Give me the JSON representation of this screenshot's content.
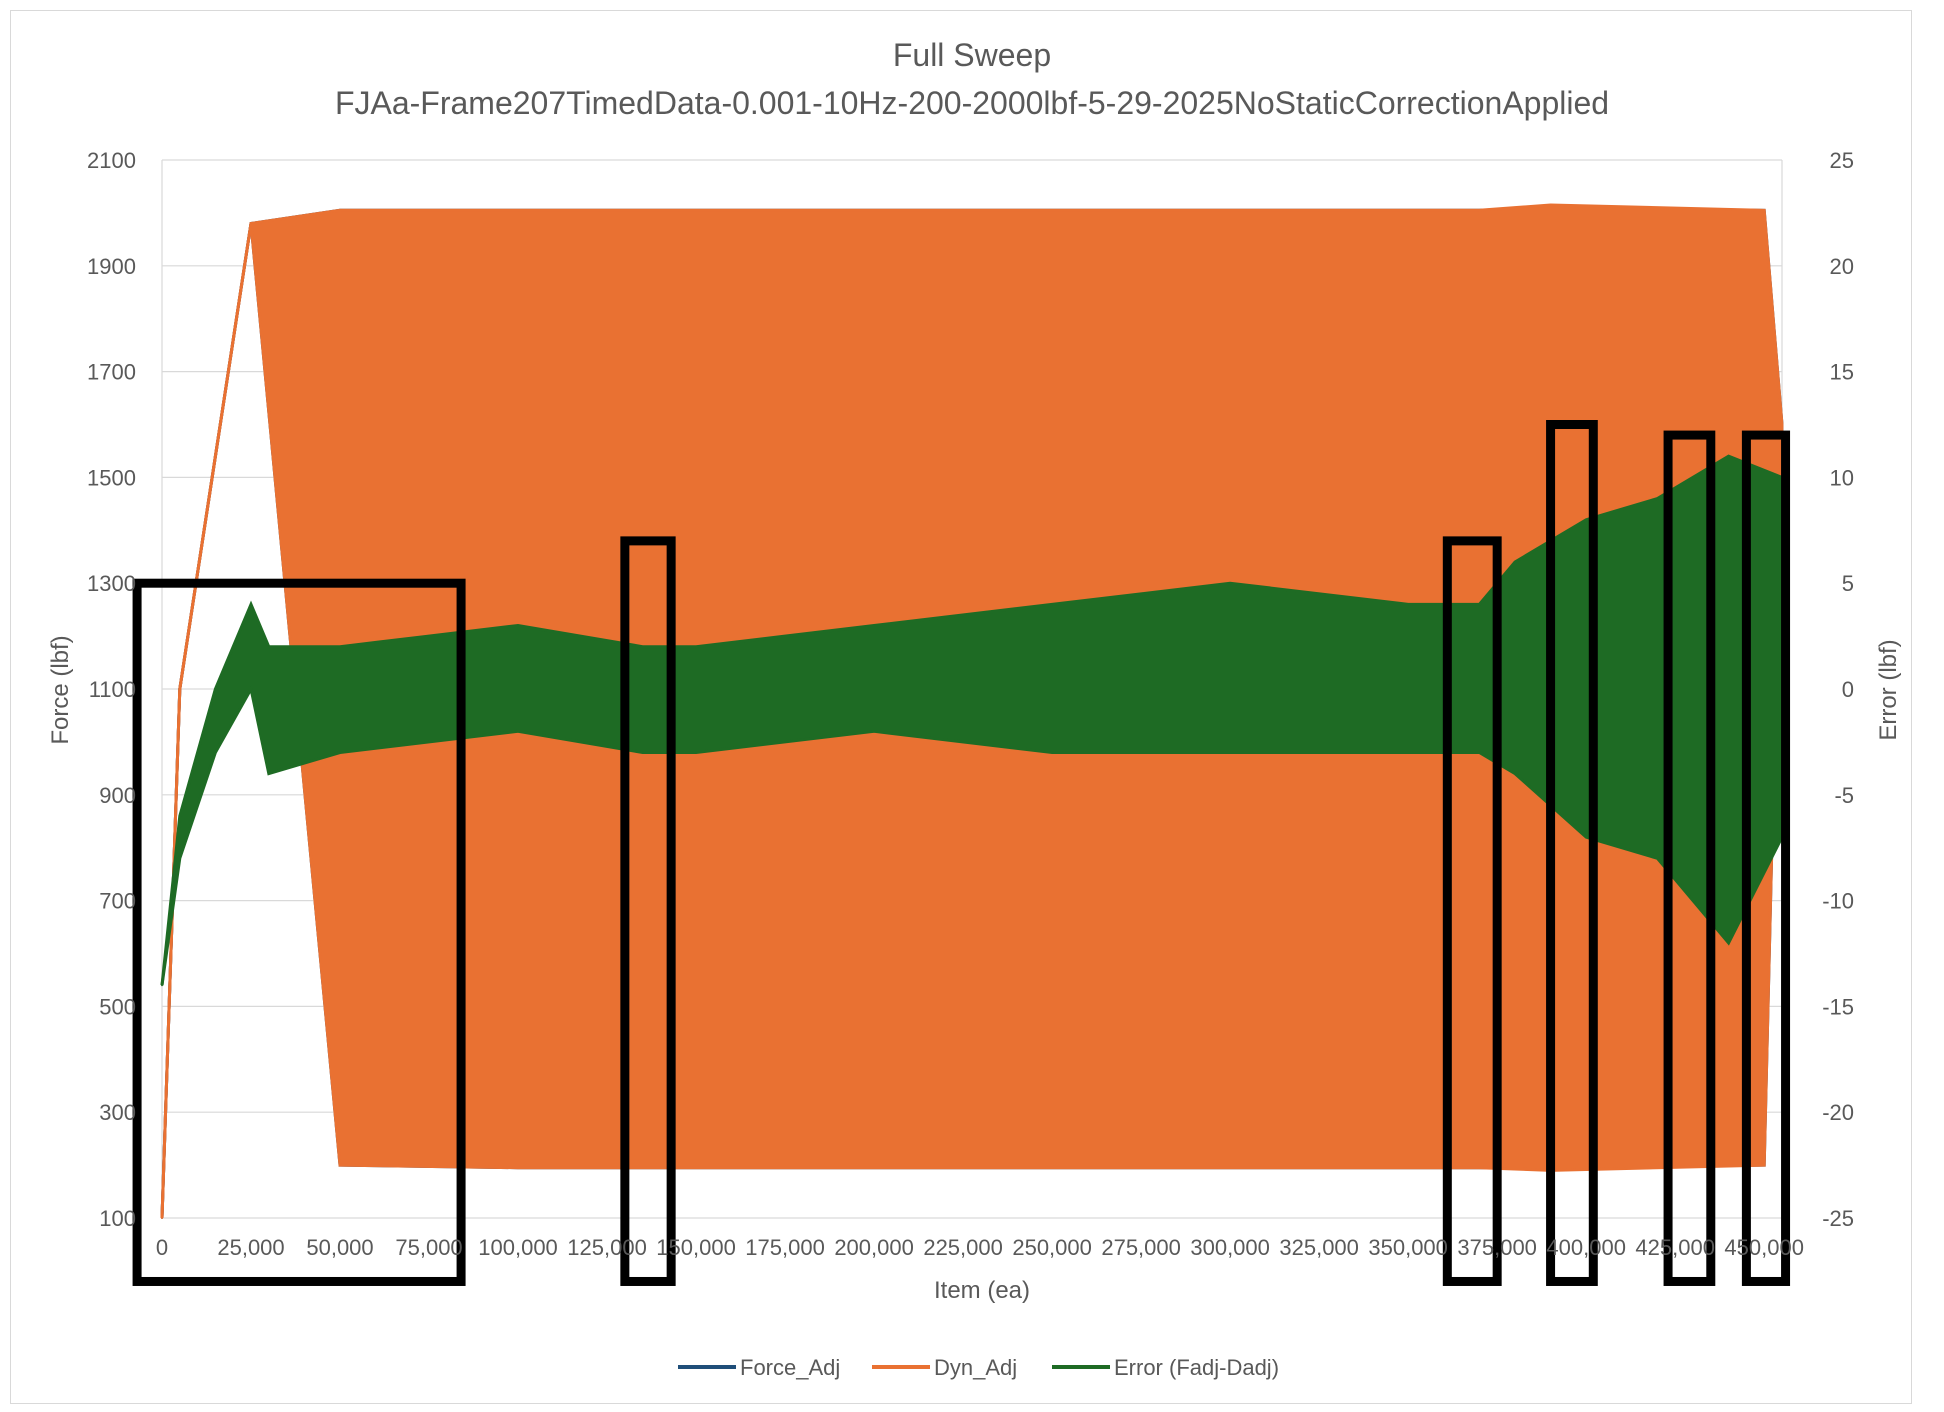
{
  "chart_data": {
    "type": "line",
    "title": "Full Sweep",
    "subtitle": "FJAa-Frame207TimedData-0.001-10Hz-200-2000lbf-5-29-2025NoStaticCorrectionApplied",
    "xlabel": "Item (ea)",
    "ylabel": "Force (lbf)",
    "y2label": "Error (lbf)",
    "xlim": [
      0,
      455000
    ],
    "ylim": [
      100,
      2100
    ],
    "y2lim": [
      -25,
      25
    ],
    "x_ticks": [
      "0",
      "25,000",
      "50,000",
      "75,000",
      "100,000",
      "125,000",
      "150,000",
      "175,000",
      "200,000",
      "225,000",
      "250,000",
      "275,000",
      "300,000",
      "325,000",
      "350,000",
      "375,000",
      "400,000",
      "425,000",
      "450,000"
    ],
    "y_ticks": [
      "100",
      "300",
      "500",
      "700",
      "900",
      "1100",
      "1300",
      "1500",
      "1700",
      "1900",
      "2100"
    ],
    "y2_ticks": [
      "-25",
      "-20",
      "-15",
      "-10",
      "-5",
      "0",
      "5",
      "10",
      "15",
      "20",
      "25"
    ],
    "grid": "horizontal",
    "legend": "bottom",
    "series": [
      {
        "name": "Force_Adj",
        "axis": "left",
        "color": "#1f4e79",
        "envelope": {
          "x": [
            0,
            5000,
            25000,
            50000,
            100000,
            200000,
            300000,
            370000,
            390000,
            450000,
            455000
          ],
          "max": [
            100,
            1100,
            1980,
            2005,
            2005,
            2005,
            2005,
            2005,
            2010,
            2005,
            1600
          ],
          "min": [
            100,
            1100,
            1980,
            200,
            195,
            195,
            195,
            195,
            195,
            200,
            1600
          ]
        }
      },
      {
        "name": "Dyn_Adj",
        "axis": "left",
        "color": "#e97132",
        "envelope": {
          "x": [
            0,
            5000,
            25000,
            50000,
            100000,
            200000,
            300000,
            370000,
            390000,
            450000,
            455000
          ],
          "max": [
            100,
            1100,
            1980,
            2005,
            2005,
            2005,
            2005,
            2005,
            2015,
            2005,
            1600
          ],
          "min": [
            100,
            1100,
            1980,
            200,
            195,
            195,
            195,
            195,
            190,
            200,
            1600
          ]
        }
      },
      {
        "name": "Error (Fadj-Dadj)",
        "axis": "right",
        "color": "#1e6b24",
        "envelope": {
          "x": [
            0,
            5000,
            15000,
            25000,
            30000,
            50000,
            100000,
            135000,
            150000,
            200000,
            250000,
            300000,
            350000,
            370000,
            380000,
            400000,
            420000,
            440000,
            455000
          ],
          "max": [
            -14,
            -6,
            0,
            4,
            2,
            2,
            3,
            2,
            2,
            3,
            4,
            5,
            4,
            4,
            6,
            8,
            9,
            11,
            10
          ],
          "min": [
            -14,
            -8,
            -3,
            0,
            -4,
            -3,
            -2,
            -3,
            -3,
            -2,
            -3,
            -3,
            -3,
            -3,
            -4,
            -7,
            -8,
            -12,
            -7
          ]
        }
      }
    ],
    "annotations": [
      {
        "type": "box",
        "x": [
          -7000,
          84000
        ],
        "y": [
          -28,
          5
        ]
      },
      {
        "type": "box",
        "x": [
          130000,
          143000
        ],
        "y": [
          -28,
          7
        ]
      },
      {
        "type": "box",
        "x": [
          361000,
          375000
        ],
        "y": [
          -28,
          7
        ]
      },
      {
        "type": "box",
        "x": [
          390000,
          402000
        ],
        "y": [
          -28,
          12.5
        ]
      },
      {
        "type": "box",
        "x": [
          423000,
          435000
        ],
        "y": [
          -28,
          12
        ]
      },
      {
        "type": "box",
        "x": [
          445000,
          456000
        ],
        "y": [
          -28,
          12
        ]
      }
    ]
  }
}
